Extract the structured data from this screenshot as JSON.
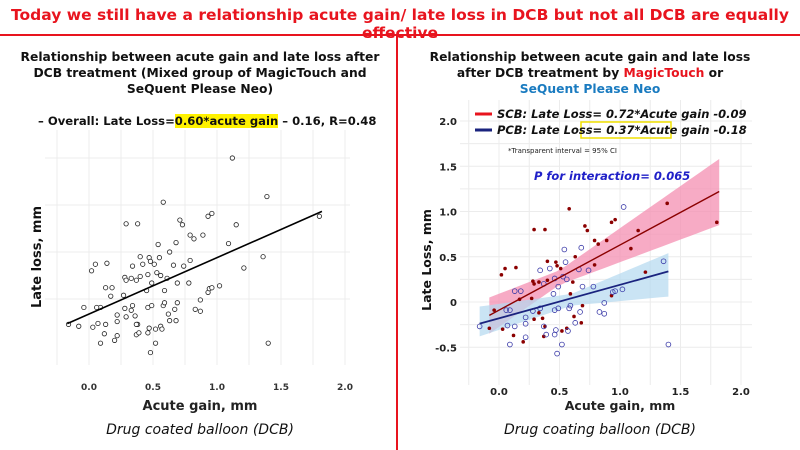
{
  "headline": "Today we still have a relationship acute gain/ late loss in DCB but not all DCB are equally effective",
  "colors": {
    "accent": "#e8141e",
    "scb": "#8b0000",
    "pcb": "#1a237e",
    "scb_band": "#f48fb1",
    "pcb_band": "#b3d9ef",
    "magic": "#e8141e",
    "sequent": "#1a7bc0",
    "pnote": "#2020c8",
    "highlight": "#fff200"
  },
  "left": {
    "title": "Relationship between acute gain and late loss after DCB treatment (Mixed group of MagicTouch and SeQuent Please Neo)",
    "formula_prefix": "– Overall: Late Loss=",
    "formula_highlight": "0.60*acute gain",
    "formula_suffix": " – 0.16, R=0.48",
    "caption": "Drug coated balloon (DCB)"
  },
  "right": {
    "title_line1": "Relationship between acute gain and late loss",
    "title_line2_prefix": "after DCB treatment by ",
    "title_magic": "MagicTouch",
    "title_or": " or",
    "title_sequent": "SeQuent Please Neo",
    "legend_scb": "SCB: Late Loss= 0.72*Acute gain -0.09",
    "legend_pcb_prefix": "PCB: Late Loss= ",
    "legend_pcb_highlight": "0.37*Acute gain",
    "legend_pcb_suffix": " -0.18",
    "ci_note": "*Transparent interval = 95% CI",
    "p_note": "P for interaction= 0.065",
    "caption": "Drug coating balloon (DCB)"
  },
  "chart_data": [
    {
      "type": "scatter",
      "xlabel": "Acute gain, mm",
      "ylabel": "Late loss, mm",
      "xticks": [
        "0.0",
        "0.5",
        "1.0",
        "1.5",
        "2.0"
      ],
      "xlim": [
        -0.35,
        2.05
      ],
      "ylim": [
        -0.75,
        1.75
      ],
      "grid": true,
      "y_tick_labels_shown": false,
      "regression": {
        "slope": 0.6,
        "intercept": -0.16,
        "r": 0.48,
        "x_range": [
          -0.17,
          1.82
        ]
      },
      "points": [
        [
          0.02,
          0.3
        ],
        [
          0.05,
          0.37
        ],
        [
          0.14,
          0.38
        ],
        [
          0.29,
          0.8
        ],
        [
          0.38,
          0.8
        ],
        [
          0.58,
          1.03
        ],
        [
          0.71,
          0.84
        ],
        [
          0.73,
          0.79
        ],
        [
          0.79,
          0.68
        ],
        [
          0.82,
          0.64
        ],
        [
          0.89,
          0.68
        ],
        [
          0.93,
          0.88
        ],
        [
          0.96,
          0.91
        ],
        [
          1.15,
          0.79
        ],
        [
          1.09,
          0.59
        ],
        [
          1.39,
          1.09
        ],
        [
          1.8,
          0.88
        ],
        [
          1.21,
          0.33
        ],
        [
          0.4,
          0.45
        ],
        [
          0.47,
          0.44
        ],
        [
          0.48,
          0.4
        ],
        [
          0.51,
          0.37
        ],
        [
          0.28,
          0.23
        ],
        [
          0.29,
          0.2
        ],
        [
          0.33,
          0.22
        ],
        [
          0.4,
          0.24
        ],
        [
          0.61,
          0.22
        ],
        [
          0.63,
          0.5
        ],
        [
          0.79,
          0.41
        ],
        [
          0.27,
          0.04
        ],
        [
          0.29,
          -0.19
        ],
        [
          0.36,
          -0.18
        ],
        [
          0.38,
          -0.27
        ],
        [
          0.37,
          -0.38
        ],
        [
          0.03,
          -0.3
        ],
        [
          0.12,
          -0.37
        ],
        [
          0.2,
          -0.44
        ],
        [
          0.52,
          -0.32
        ],
        [
          0.56,
          -0.29
        ],
        [
          0.62,
          -0.16
        ],
        [
          0.68,
          -0.23
        ],
        [
          0.69,
          -0.04
        ],
        [
          0.59,
          0.09
        ],
        [
          0.93,
          0.07
        ],
        [
          -0.08,
          -0.29
        ],
        [
          -0.04,
          -0.09
        ],
        [
          0.33,
          -0.12
        ],
        [
          0.17,
          0.03
        ],
        [
          -0.16,
          -0.27
        ],
        [
          0.09,
          -0.47
        ],
        [
          0.07,
          -0.26
        ],
        [
          0.13,
          -0.27
        ],
        [
          0.22,
          -0.39
        ],
        [
          0.22,
          -0.24
        ],
        [
          0.22,
          -0.17
        ],
        [
          0.13,
          0.12
        ],
        [
          0.18,
          0.12
        ],
        [
          0.09,
          -0.09
        ],
        [
          0.06,
          -0.09
        ],
        [
          0.28,
          -0.1
        ],
        [
          0.34,
          -0.07
        ],
        [
          0.34,
          0.35
        ],
        [
          0.42,
          0.37
        ],
        [
          0.37,
          0.2
        ],
        [
          0.37,
          -0.27
        ],
        [
          0.39,
          -0.36
        ],
        [
          0.46,
          -0.36
        ],
        [
          0.47,
          -0.31
        ],
        [
          0.48,
          -0.57
        ],
        [
          0.52,
          -0.47
        ],
        [
          0.57,
          -0.32
        ],
        [
          0.45,
          0.09
        ],
        [
          0.46,
          -0.09
        ],
        [
          0.49,
          -0.07
        ],
        [
          0.49,
          0.17
        ],
        [
          0.46,
          0.26
        ],
        [
          0.54,
          0.58
        ],
        [
          0.55,
          0.44
        ],
        [
          0.56,
          0.25
        ],
        [
          0.58,
          -0.07
        ],
        [
          0.59,
          -0.04
        ],
        [
          0.63,
          -0.23
        ],
        [
          0.67,
          -0.11
        ],
        [
          0.66,
          0.36
        ],
        [
          0.68,
          0.6
        ],
        [
          0.69,
          0.17
        ],
        [
          0.74,
          0.35
        ],
        [
          0.78,
          0.17
        ],
        [
          0.83,
          -0.11
        ],
        [
          0.87,
          -0.13
        ],
        [
          0.87,
          -0.01
        ],
        [
          0.94,
          0.11
        ],
        [
          1.02,
          0.14
        ],
        [
          1.12,
          1.5
        ],
        [
          1.36,
          0.45
        ],
        [
          1.4,
          -0.47
        ],
        [
          0.53,
          0.28
        ],
        [
          0.96,
          0.12
        ]
      ]
    },
    {
      "type": "scatter",
      "xlabel": "Acute gain, mm",
      "ylabel": "Late Loss, mm",
      "xticks": [
        "0.0",
        "0.5",
        "1.0",
        "1.5",
        "2.0"
      ],
      "yticks": [
        "2.0",
        "1.5",
        "1.0",
        "0.5",
        "0",
        "-0.5"
      ],
      "xlim": [
        -0.3,
        2.05
      ],
      "ylim": [
        -0.85,
        2.1
      ],
      "grid": true,
      "legend": "top-left",
      "series": [
        {
          "name": "SCB",
          "marker": "filled",
          "regression": {
            "slope": 0.72,
            "intercept": -0.09,
            "x_range": [
              -0.08,
              1.82
            ]
          },
          "ci": {
            "x": [
              -0.08,
              0.5,
              1.82
            ],
            "lower": [
              -0.35,
              0.19,
              0.85
            ],
            "upper": [
              0.05,
              0.35,
              1.58
            ]
          },
          "points": [
            [
              0.02,
              0.3
            ],
            [
              0.05,
              0.37
            ],
            [
              0.14,
              0.38
            ],
            [
              0.29,
              0.8
            ],
            [
              0.38,
              0.8
            ],
            [
              0.58,
              1.03
            ],
            [
              0.71,
              0.84
            ],
            [
              0.73,
              0.79
            ],
            [
              0.79,
              0.68
            ],
            [
              0.82,
              0.64
            ],
            [
              0.89,
              0.68
            ],
            [
              0.93,
              0.88
            ],
            [
              0.96,
              0.91
            ],
            [
              1.15,
              0.79
            ],
            [
              1.09,
              0.59
            ],
            [
              1.39,
              1.09
            ],
            [
              1.8,
              0.88
            ],
            [
              1.21,
              0.33
            ],
            [
              0.4,
              0.45
            ],
            [
              0.47,
              0.44
            ],
            [
              0.48,
              0.4
            ],
            [
              0.51,
              0.37
            ],
            [
              0.28,
              0.23
            ],
            [
              0.29,
              0.2
            ],
            [
              0.33,
              0.22
            ],
            [
              0.4,
              0.24
            ],
            [
              0.61,
              0.22
            ],
            [
              0.63,
              0.5
            ],
            [
              0.79,
              0.41
            ],
            [
              0.27,
              0.04
            ],
            [
              0.29,
              -0.19
            ],
            [
              0.36,
              -0.18
            ],
            [
              0.38,
              -0.27
            ],
            [
              0.37,
              -0.38
            ],
            [
              0.03,
              -0.3
            ],
            [
              0.12,
              -0.37
            ],
            [
              0.2,
              -0.44
            ],
            [
              0.52,
              -0.32
            ],
            [
              0.56,
              -0.29
            ],
            [
              0.62,
              -0.16
            ],
            [
              0.68,
              -0.23
            ],
            [
              0.69,
              -0.04
            ],
            [
              0.59,
              0.09
            ],
            [
              0.93,
              0.07
            ],
            [
              -0.08,
              -0.29
            ],
            [
              -0.04,
              -0.09
            ],
            [
              0.33,
              -0.12
            ],
            [
              0.17,
              0.03
            ]
          ]
        },
        {
          "name": "PCB",
          "marker": "open",
          "regression": {
            "slope": 0.37,
            "intercept": -0.18,
            "x_range": [
              -0.16,
              1.4
            ]
          },
          "ci": {
            "x": [
              -0.16,
              0.6,
              1.4
            ],
            "lower": [
              -0.38,
              -0.04,
              0.06
            ],
            "upper": [
              -0.05,
              0.09,
              0.54
            ]
          },
          "points": [
            [
              -0.16,
              -0.27
            ],
            [
              0.09,
              -0.47
            ],
            [
              0.07,
              -0.26
            ],
            [
              0.13,
              -0.27
            ],
            [
              0.22,
              -0.39
            ],
            [
              0.22,
              -0.24
            ],
            [
              0.22,
              -0.17
            ],
            [
              0.13,
              0.12
            ],
            [
              0.18,
              0.12
            ],
            [
              0.09,
              -0.09
            ],
            [
              0.06,
              -0.09
            ],
            [
              0.28,
              -0.1
            ],
            [
              0.34,
              -0.07
            ],
            [
              0.34,
              0.35
            ],
            [
              0.42,
              0.37
            ],
            [
              0.37,
              0.2
            ],
            [
              0.37,
              -0.27
            ],
            [
              0.39,
              -0.36
            ],
            [
              0.46,
              -0.36
            ],
            [
              0.47,
              -0.31
            ],
            [
              0.48,
              -0.57
            ],
            [
              0.52,
              -0.47
            ],
            [
              0.57,
              -0.32
            ],
            [
              0.45,
              0.09
            ],
            [
              0.46,
              -0.09
            ],
            [
              0.49,
              -0.07
            ],
            [
              0.49,
              0.17
            ],
            [
              0.46,
              0.26
            ],
            [
              0.54,
              0.58
            ],
            [
              0.55,
              0.44
            ],
            [
              0.56,
              0.25
            ],
            [
              0.58,
              -0.07
            ],
            [
              0.59,
              -0.04
            ],
            [
              0.63,
              -0.23
            ],
            [
              0.67,
              -0.11
            ],
            [
              0.66,
              0.36
            ],
            [
              0.68,
              0.6
            ],
            [
              0.69,
              0.17
            ],
            [
              0.74,
              0.35
            ],
            [
              0.78,
              0.17
            ],
            [
              0.83,
              -0.11
            ],
            [
              0.87,
              -0.13
            ],
            [
              0.87,
              -0.01
            ],
            [
              0.94,
              0.11
            ],
            [
              1.02,
              0.14
            ],
            [
              1.03,
              1.05
            ],
            [
              1.36,
              0.45
            ],
            [
              1.4,
              -0.47
            ],
            [
              0.53,
              0.28
            ],
            [
              0.96,
              0.12
            ]
          ]
        }
      ]
    }
  ]
}
